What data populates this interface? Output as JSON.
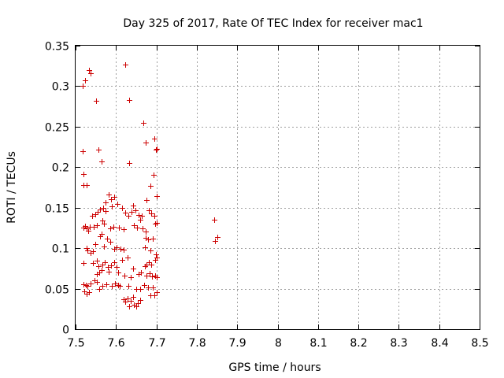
{
  "chart_data": {
    "type": "scatter",
    "title": "Day 325 of 2017, Rate Of TEC Index for receiver mac1",
    "xlabel": "GPS time / hours",
    "ylabel": "ROTI / TECUs",
    "xlim": [
      7.5,
      8.5
    ],
    "ylim": [
      0,
      0.35
    ],
    "xticks": [
      "7.5",
      "7.6",
      "7.7",
      "7.8",
      "7.9",
      "8",
      "8.1",
      "8.2",
      "8.3",
      "8.4",
      "8.5"
    ],
    "yticks": [
      "0",
      "0.05",
      "0.1",
      "0.15",
      "0.2",
      "0.25",
      "0.3",
      "0.35"
    ],
    "grid": true,
    "marker": "+",
    "color": "#cc0000",
    "series": [
      {
        "points": [
          [
            7.518,
            0.3
          ],
          [
            7.524,
            0.307
          ],
          [
            7.533,
            0.32
          ],
          [
            7.537,
            0.316
          ],
          [
            7.55,
            0.282
          ],
          [
            7.623,
            0.327
          ],
          [
            7.632,
            0.283
          ],
          [
            7.667,
            0.255
          ],
          [
            7.673,
            0.23
          ],
          [
            7.694,
            0.235
          ],
          [
            7.699,
            0.222
          ],
          [
            7.701,
            0.223
          ],
          [
            7.518,
            0.22
          ],
          [
            7.519,
            0.192
          ],
          [
            7.52,
            0.178
          ],
          [
            7.527,
            0.178
          ],
          [
            7.557,
            0.222
          ],
          [
            7.564,
            0.207
          ],
          [
            7.633,
            0.205
          ],
          [
            7.686,
            0.177
          ],
          [
            7.693,
            0.191
          ],
          [
            7.7,
            0.164
          ],
          [
            7.676,
            0.159
          ],
          [
            7.581,
            0.166
          ],
          [
            7.587,
            0.16
          ],
          [
            7.575,
            0.157
          ],
          [
            7.596,
            0.163
          ],
          [
            7.603,
            0.155
          ],
          [
            7.59,
            0.152
          ],
          [
            7.555,
            0.145
          ],
          [
            7.561,
            0.148
          ],
          [
            7.568,
            0.15
          ],
          [
            7.574,
            0.146
          ],
          [
            7.549,
            0.142
          ],
          [
            7.54,
            0.14
          ],
          [
            7.615,
            0.15
          ],
          [
            7.622,
            0.144
          ],
          [
            7.63,
            0.14
          ],
          [
            7.638,
            0.145
          ],
          [
            7.642,
            0.153
          ],
          [
            7.649,
            0.147
          ],
          [
            7.656,
            0.141
          ],
          [
            7.66,
            0.135
          ],
          [
            7.664,
            0.14
          ],
          [
            7.681,
            0.147
          ],
          [
            7.688,
            0.143
          ],
          [
            7.694,
            0.14
          ],
          [
            7.52,
            0.125
          ],
          [
            7.523,
            0.127
          ],
          [
            7.527,
            0.124
          ],
          [
            7.532,
            0.122
          ],
          [
            7.536,
            0.126
          ],
          [
            7.545,
            0.126
          ],
          [
            7.553,
            0.128
          ],
          [
            7.566,
            0.134
          ],
          [
            7.571,
            0.13
          ],
          [
            7.585,
            0.124
          ],
          [
            7.594,
            0.126
          ],
          [
            7.608,
            0.125
          ],
          [
            7.618,
            0.123
          ],
          [
            7.645,
            0.128
          ],
          [
            7.653,
            0.125
          ],
          [
            7.666,
            0.124
          ],
          [
            7.673,
            0.121
          ],
          [
            7.697,
            0.13
          ],
          [
            7.701,
            0.131
          ],
          [
            7.56,
            0.115
          ],
          [
            7.565,
            0.118
          ],
          [
            7.578,
            0.112
          ],
          [
            7.586,
            0.108
          ],
          [
            7.674,
            0.113
          ],
          [
            7.68,
            0.111
          ],
          [
            7.692,
            0.112
          ],
          [
            7.527,
            0.1
          ],
          [
            7.53,
            0.097
          ],
          [
            7.537,
            0.094
          ],
          [
            7.542,
            0.096
          ],
          [
            7.548,
            0.105
          ],
          [
            7.57,
            0.102
          ],
          [
            7.596,
            0.099
          ],
          [
            7.602,
            0.101
          ],
          [
            7.612,
            0.099
          ],
          [
            7.618,
            0.098
          ],
          [
            7.671,
            0.101
          ],
          [
            7.685,
            0.097
          ],
          [
            7.699,
            0.092
          ],
          [
            7.52,
            0.082
          ],
          [
            7.542,
            0.082
          ],
          [
            7.553,
            0.085
          ],
          [
            7.557,
            0.078
          ],
          [
            7.566,
            0.08
          ],
          [
            7.573,
            0.083
          ],
          [
            7.58,
            0.077
          ],
          [
            7.587,
            0.079
          ],
          [
            7.596,
            0.083
          ],
          [
            7.602,
            0.077
          ],
          [
            7.615,
            0.086
          ],
          [
            7.628,
            0.088
          ],
          [
            7.642,
            0.075
          ],
          [
            7.671,
            0.078
          ],
          [
            7.675,
            0.08
          ],
          [
            7.681,
            0.083
          ],
          [
            7.688,
            0.08
          ],
          [
            7.697,
            0.086
          ],
          [
            7.7,
            0.088
          ],
          [
            7.553,
            0.068
          ],
          [
            7.558,
            0.07
          ],
          [
            7.565,
            0.073
          ],
          [
            7.581,
            0.071
          ],
          [
            7.605,
            0.07
          ],
          [
            7.621,
            0.066
          ],
          [
            7.636,
            0.064
          ],
          [
            7.655,
            0.068
          ],
          [
            7.662,
            0.07
          ],
          [
            7.676,
            0.066
          ],
          [
            7.683,
            0.069
          ],
          [
            7.69,
            0.065
          ],
          [
            7.697,
            0.066
          ],
          [
            7.701,
            0.064
          ],
          [
            7.52,
            0.055
          ],
          [
            7.525,
            0.054
          ],
          [
            7.53,
            0.053
          ],
          [
            7.537,
            0.056
          ],
          [
            7.547,
            0.06
          ],
          [
            7.552,
            0.058
          ],
          [
            7.558,
            0.05
          ],
          [
            7.566,
            0.053
          ],
          [
            7.576,
            0.055
          ],
          [
            7.589,
            0.053
          ],
          [
            7.598,
            0.056
          ],
          [
            7.606,
            0.054
          ],
          [
            7.61,
            0.053
          ],
          [
            7.631,
            0.053
          ],
          [
            7.651,
            0.05
          ],
          [
            7.659,
            0.05
          ],
          [
            7.669,
            0.054
          ],
          [
            7.68,
            0.052
          ],
          [
            7.691,
            0.052
          ],
          [
            7.522,
            0.047
          ],
          [
            7.527,
            0.044
          ],
          [
            7.533,
            0.046
          ],
          [
            7.7,
            0.046
          ],
          [
            7.695,
            0.042
          ],
          [
            7.685,
            0.042
          ],
          [
            7.618,
            0.037
          ],
          [
            7.623,
            0.034
          ],
          [
            7.628,
            0.038
          ],
          [
            7.637,
            0.035
          ],
          [
            7.642,
            0.04
          ],
          [
            7.645,
            0.03
          ],
          [
            7.65,
            0.028
          ],
          [
            7.632,
            0.028
          ],
          [
            7.654,
            0.032
          ],
          [
            7.66,
            0.036
          ],
          [
            7.843,
            0.135
          ],
          [
            7.845,
            0.109
          ],
          [
            7.85,
            0.114
          ]
        ]
      }
    ]
  }
}
